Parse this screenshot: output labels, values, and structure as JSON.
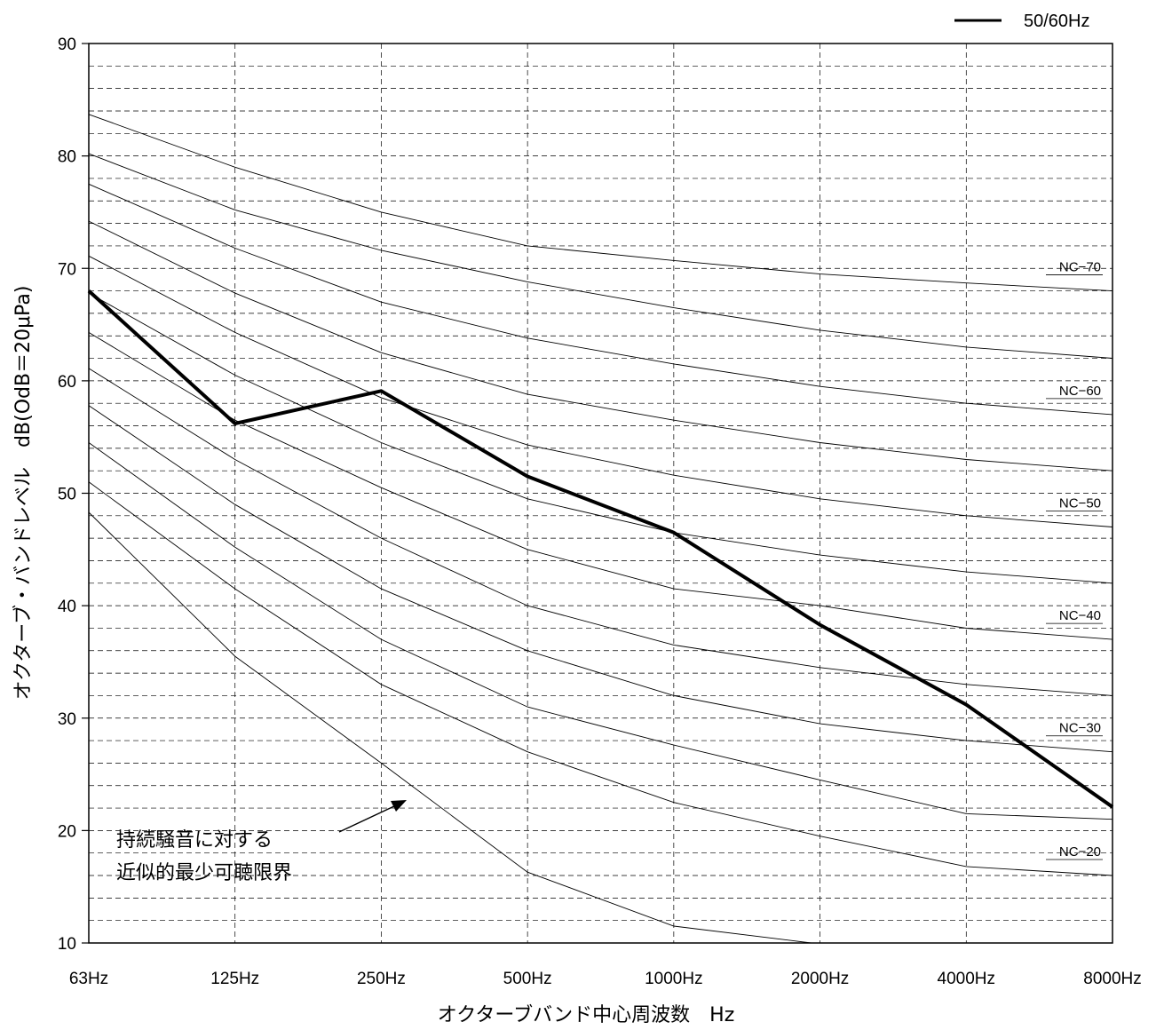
{
  "chart_data": {
    "type": "line",
    "title": "",
    "xlabel": "オクターブバンド中心周波数　Hz",
    "ylabel": "オクターブ・バンドレベル　dB(OdB＝20μPa)",
    "x": [
      "63Hz",
      "125Hz",
      "250Hz",
      "500Hz",
      "1000Hz",
      "2000Hz",
      "4000Hz",
      "8000Hz"
    ],
    "ylim": [
      10,
      90
    ],
    "yticks": [
      10,
      20,
      30,
      40,
      50,
      60,
      70,
      80,
      90
    ],
    "grid": true,
    "legend": {
      "position": "top-right",
      "entries": [
        "50/60Hz"
      ]
    },
    "series": [
      {
        "name": "50/60Hz",
        "values": [
          68,
          56.2,
          59.1,
          51.5,
          46.5,
          38.3,
          31.2,
          22.1
        ]
      }
    ],
    "nc_curves": [
      {
        "label": "NC−70",
        "values": [
          83.7,
          79,
          75,
          72,
          70.7,
          69.5,
          68.7,
          68
        ]
      },
      {
        "values": [
          80.2,
          75.2,
          71.6,
          68.8,
          66.5,
          64.5,
          63,
          62
        ]
      },
      {
        "label": "NC−60",
        "values": [
          77.5,
          71.8,
          67,
          63.8,
          61.5,
          59.5,
          58,
          57
        ]
      },
      {
        "values": [
          74.2,
          67.8,
          62.5,
          58.8,
          56.5,
          54.5,
          53,
          52
        ]
      },
      {
        "label": "NC−50",
        "values": [
          71.1,
          64.3,
          58.5,
          54.3,
          51.6,
          49.5,
          48,
          47
        ]
      },
      {
        "values": [
          67.8,
          60.5,
          54.5,
          49.5,
          46.5,
          44.5,
          43,
          42
        ]
      },
      {
        "label": "NC−40",
        "values": [
          64.3,
          56.5,
          50.5,
          45,
          41.5,
          40,
          38,
          37
        ]
      },
      {
        "values": [
          61.1,
          53,
          46,
          40,
          36.5,
          34.5,
          33,
          32
        ]
      },
      {
        "label": "NC−30",
        "values": [
          57.8,
          49,
          41.5,
          36,
          32,
          29.5,
          28,
          27
        ]
      },
      {
        "values": [
          54.5,
          45.2,
          37,
          31,
          27.6,
          24.5,
          21.5,
          21
        ]
      },
      {
        "label": "NC−20",
        "values": [
          51,
          41.5,
          33,
          27,
          22.5,
          19.5,
          16.8,
          16
        ]
      },
      {
        "values": [
          48.3,
          35.5,
          26,
          16.3,
          11.5,
          10,
          null,
          null
        ]
      }
    ],
    "annotation": {
      "lines": [
        "持続騒音に対する",
        "近似的最少可聴限界"
      ]
    }
  }
}
